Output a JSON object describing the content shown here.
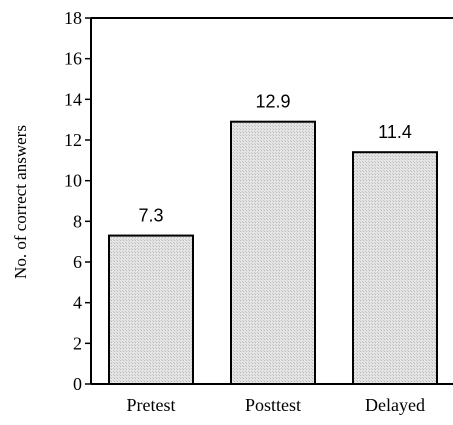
{
  "chart_data": {
    "type": "bar",
    "title": "",
    "xlabel": "",
    "ylabel": "No. of correct  answers",
    "categories": [
      "Pretest",
      "Posttest",
      "Delayed"
    ],
    "values": [
      7.3,
      12.9,
      11.4
    ],
    "data_labels": [
      "7.3",
      "12.9",
      "11.4"
    ],
    "ylim": [
      0,
      18
    ],
    "yticks": [
      0,
      2,
      4,
      6,
      8,
      10,
      12,
      14,
      16,
      18
    ],
    "grid": false,
    "legend": "none",
    "bar_fill": "#d9d9d9",
    "bar_stroke": "#000000"
  }
}
